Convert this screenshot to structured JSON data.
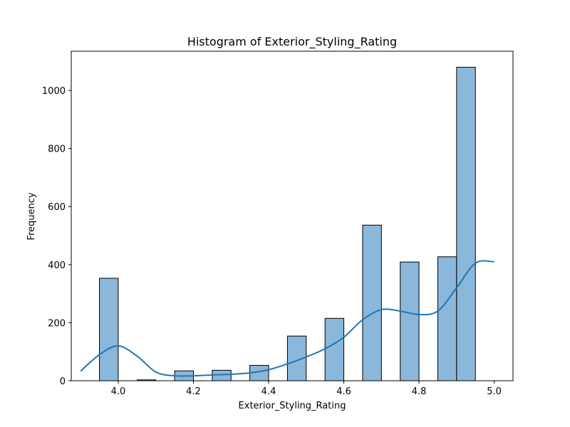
{
  "chart_data": {
    "type": "bar",
    "title": "Histogram of Exterior_Styling_Rating",
    "xlabel": "Exterior_Styling_Rating",
    "ylabel": "Frequency",
    "xlim": [
      3.875,
      5.05
    ],
    "ylim": [
      0,
      1135
    ],
    "x_ticks": [
      "4.0",
      "4.2",
      "4.4",
      "4.6",
      "4.8",
      "5.0"
    ],
    "y_ticks": [
      "0",
      "200",
      "400",
      "600",
      "800",
      "1000"
    ],
    "bins": [
      {
        "x0": 3.9,
        "x1": 3.95,
        "count": 0
      },
      {
        "x0": 3.95,
        "x1": 4.0,
        "count": 353
      },
      {
        "x0": 4.0,
        "x1": 4.05,
        "count": 0
      },
      {
        "x0": 4.05,
        "x1": 4.1,
        "count": 3
      },
      {
        "x0": 4.1,
        "x1": 4.15,
        "count": 0
      },
      {
        "x0": 4.15,
        "x1": 4.2,
        "count": 34
      },
      {
        "x0": 4.2,
        "x1": 4.25,
        "count": 0
      },
      {
        "x0": 4.25,
        "x1": 4.3,
        "count": 36
      },
      {
        "x0": 4.3,
        "x1": 4.35,
        "count": 0
      },
      {
        "x0": 4.35,
        "x1": 4.4,
        "count": 53
      },
      {
        "x0": 4.4,
        "x1": 4.45,
        "count": 0
      },
      {
        "x0": 4.45,
        "x1": 4.5,
        "count": 154
      },
      {
        "x0": 4.5,
        "x1": 4.55,
        "count": 0
      },
      {
        "x0": 4.55,
        "x1": 4.6,
        "count": 215
      },
      {
        "x0": 4.6,
        "x1": 4.65,
        "count": 0
      },
      {
        "x0": 4.65,
        "x1": 4.7,
        "count": 536
      },
      {
        "x0": 4.7,
        "x1": 4.75,
        "count": 0
      },
      {
        "x0": 4.75,
        "x1": 4.8,
        "count": 409
      },
      {
        "x0": 4.8,
        "x1": 4.85,
        "count": 0
      },
      {
        "x0": 4.85,
        "x1": 4.9,
        "count": 427
      },
      {
        "x0": 4.9,
        "x1": 4.95,
        "count": 1080
      }
    ],
    "kde": {
      "x": [
        3.9,
        3.95,
        4.0,
        4.05,
        4.1,
        4.15,
        4.2,
        4.25,
        4.3,
        4.35,
        4.4,
        4.45,
        4.5,
        4.55,
        4.6,
        4.65,
        4.7,
        4.75,
        4.8,
        4.85,
        4.9,
        4.95,
        5.0
      ],
      "y": [
        33,
        90,
        120,
        85,
        30,
        17,
        17,
        20,
        22,
        27,
        38,
        58,
        82,
        110,
        150,
        210,
        245,
        240,
        228,
        240,
        320,
        405,
        410
      ]
    },
    "colors": {
      "bar_fill": "#8ab7da",
      "bar_edge": "#000000",
      "kde_line": "#1f77b4"
    },
    "grid": false,
    "legend": "none"
  }
}
